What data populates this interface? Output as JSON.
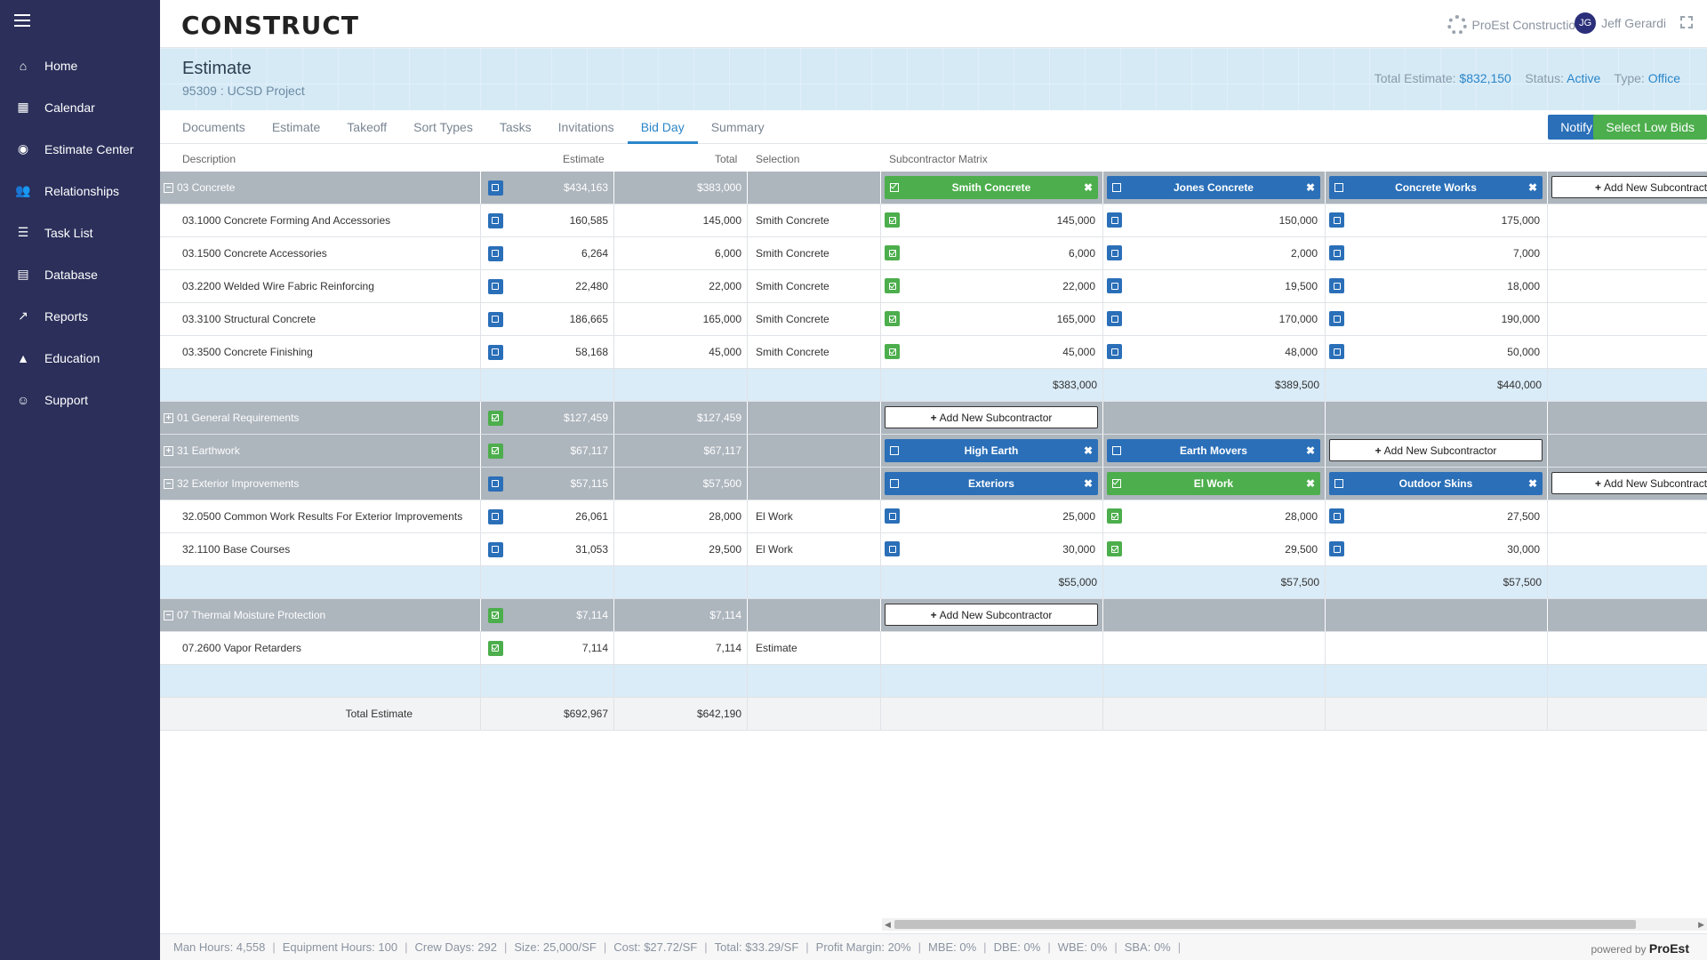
{
  "sidebar": {
    "items": [
      {
        "label": "Home",
        "icon": "home-icon",
        "glyph": "⌂"
      },
      {
        "label": "Calendar",
        "icon": "calendar-icon",
        "glyph": "▦"
      },
      {
        "label": "Estimate Center",
        "icon": "target-icon",
        "glyph": "◉"
      },
      {
        "label": "Relationships",
        "icon": "users-icon",
        "glyph": "👥"
      },
      {
        "label": "Task List",
        "icon": "list-icon",
        "glyph": "☰"
      },
      {
        "label": "Database",
        "icon": "database-icon",
        "glyph": "▤"
      },
      {
        "label": "Reports",
        "icon": "chart-icon",
        "glyph": "↗"
      },
      {
        "label": "Education",
        "icon": "graduation-icon",
        "glyph": "▲"
      },
      {
        "label": "Support",
        "icon": "support-icon",
        "glyph": "☺"
      }
    ]
  },
  "header": {
    "logo": "CONSTRUCT",
    "company": "ProEst Construction",
    "user_initials": "JG",
    "user_name": "Jeff Gerardi"
  },
  "estimate": {
    "title": "Estimate",
    "subtitle": "95309 : UCSD Project",
    "total_label": "Total Estimate:",
    "total_value": "$832,150",
    "status_label": "Status:",
    "status_value": "Active",
    "type_label": "Type:",
    "type_value": "Office"
  },
  "tabs": [
    "Documents",
    "Estimate",
    "Takeoff",
    "Sort Types",
    "Tasks",
    "Invitations",
    "Bid Day",
    "Summary"
  ],
  "active_tab": "Bid Day",
  "buttons": {
    "notify": "Notify",
    "select_low": "Select Low Bids",
    "add_sub": "Add New Subcontractor"
  },
  "columns": {
    "description": "Description",
    "estimate": "Estimate",
    "total": "Total",
    "selection": "Selection",
    "matrix": "Subcontractor Matrix"
  },
  "groups": [
    {
      "name": "03 Concrete",
      "collapsed": false,
      "checked": false,
      "estimate": "$434,163",
      "total": "$383,000",
      "subs": [
        {
          "name": "Smith Concrete",
          "selected": true
        },
        {
          "name": "Jones Concrete",
          "selected": false
        },
        {
          "name": "Concrete Works",
          "selected": false
        }
      ],
      "add_clipped": true,
      "items": [
        {
          "desc": "03.1000 Concrete Forming And Accessories",
          "estimate": "160,585",
          "total": "145,000",
          "selection": "Smith Concrete",
          "bids": [
            {
              "v": "145,000",
              "s": true
            },
            {
              "v": "150,000",
              "s": false
            },
            {
              "v": "175,000",
              "s": false
            }
          ]
        },
        {
          "desc": "03.1500 Concrete Accessories",
          "estimate": "6,264",
          "total": "6,000",
          "selection": "Smith Concrete",
          "bids": [
            {
              "v": "6,000",
              "s": true
            },
            {
              "v": "2,000",
              "s": false
            },
            {
              "v": "7,000",
              "s": false
            }
          ]
        },
        {
          "desc": "03.2200 Welded Wire Fabric Reinforcing",
          "estimate": "22,480",
          "total": "22,000",
          "selection": "Smith Concrete",
          "bids": [
            {
              "v": "22,000",
              "s": true
            },
            {
              "v": "19,500",
              "s": false
            },
            {
              "v": "18,000",
              "s": false
            }
          ]
        },
        {
          "desc": "03.3100 Structural Concrete",
          "estimate": "186,665",
          "total": "165,000",
          "selection": "Smith Concrete",
          "bids": [
            {
              "v": "165,000",
              "s": true
            },
            {
              "v": "170,000",
              "s": false
            },
            {
              "v": "190,000",
              "s": false
            }
          ]
        },
        {
          "desc": "03.3500 Concrete Finishing",
          "estimate": "58,168",
          "total": "45,000",
          "selection": "Smith Concrete",
          "bids": [
            {
              "v": "45,000",
              "s": true
            },
            {
              "v": "48,000",
              "s": false
            },
            {
              "v": "50,000",
              "s": false
            }
          ]
        }
      ],
      "subtotals": [
        "$383,000",
        "$389,500",
        "$440,000"
      ]
    },
    {
      "name": "01 General Requirements",
      "collapsed": true,
      "checked": true,
      "estimate": "$127,459",
      "total": "$127,459",
      "subs": [],
      "items": []
    },
    {
      "name": "31 Earthwork",
      "collapsed": true,
      "checked": true,
      "estimate": "$67,117",
      "total": "$67,117",
      "subs": [
        {
          "name": "High Earth",
          "selected": false
        },
        {
          "name": "Earth Movers",
          "selected": false
        }
      ],
      "items": []
    },
    {
      "name": "32 Exterior Improvements",
      "collapsed": false,
      "checked": false,
      "estimate": "$57,115",
      "total": "$57,500",
      "subs": [
        {
          "name": "Exteriors",
          "selected": false
        },
        {
          "name": "El Work",
          "selected": true
        },
        {
          "name": "Outdoor Skins",
          "selected": false
        }
      ],
      "add_clipped": true,
      "items": [
        {
          "desc": "32.0500 Common Work Results For Exterior Improvements",
          "estimate": "26,061",
          "total": "28,000",
          "selection": "El Work",
          "bids": [
            {
              "v": "25,000",
              "s": false
            },
            {
              "v": "28,000",
              "s": true
            },
            {
              "v": "27,500",
              "s": false
            }
          ]
        },
        {
          "desc": "32.1100 Base Courses",
          "estimate": "31,053",
          "total": "29,500",
          "selection": "El Work",
          "bids": [
            {
              "v": "30,000",
              "s": false
            },
            {
              "v": "29,500",
              "s": true
            },
            {
              "v": "30,000",
              "s": false
            }
          ]
        }
      ],
      "subtotals": [
        "$55,000",
        "$57,500",
        "$57,500"
      ]
    },
    {
      "name": "07 Thermal Moisture Protection",
      "collapsed": false,
      "checked": true,
      "estimate": "$7,114",
      "total": "$7,114",
      "subs": [],
      "items": [
        {
          "desc": "07.2600 Vapor Retarders",
          "estimate": "7,114",
          "total": "7,114",
          "selection": "Estimate",
          "checked": true,
          "bids": []
        }
      ],
      "subtotals": [
        "",
        "",
        ""
      ]
    }
  ],
  "grand_total": {
    "label": "Total Estimate",
    "estimate": "$692,967",
    "total": "$642,190"
  },
  "footer": {
    "stats": [
      "Man Hours: 4,558",
      "Equipment Hours: 100",
      "Crew Days: 292",
      "Size: 25,000/SF",
      "Cost: $27.72/SF",
      "Total: $33.29/SF",
      "Profit Margin: 20%",
      "MBE: 0%",
      "DBE: 0%",
      "WBE: 0%",
      "SBA: 0%"
    ],
    "powered_by": "powered by",
    "brand": "ProEst"
  }
}
